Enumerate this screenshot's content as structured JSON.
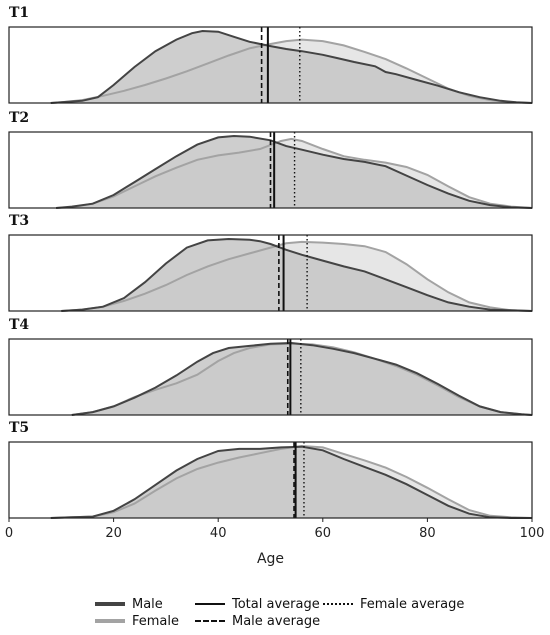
{
  "chart_data": {
    "type": "area",
    "xlabel": "Age",
    "xlim": [
      0,
      100
    ],
    "xticks": [
      0,
      20,
      40,
      60,
      80,
      100
    ],
    "grid": false,
    "colors": {
      "male": "#444444",
      "female": "#a3a3a3",
      "male_fill": "#c6c6c6",
      "female_fill": "#e6e6e6",
      "line": "#111111"
    },
    "legend": {
      "male": "Male",
      "female": "Female",
      "total_average": "Total average",
      "male_average": "Male average",
      "female_average": "Female average"
    },
    "panels": [
      {
        "title": "T1",
        "averages": {
          "total": 49.5,
          "male": 48.3,
          "female": 55.6
        },
        "male": {
          "x": [
            8,
            10,
            14,
            17,
            20,
            24,
            28,
            32,
            35,
            37,
            40,
            43,
            46,
            50,
            53,
            56,
            60,
            63,
            66,
            70,
            72,
            74,
            78,
            82,
            86,
            90,
            94,
            97,
            100
          ],
          "y": [
            0,
            0.01,
            0.03,
            0.08,
            0.25,
            0.5,
            0.72,
            0.88,
            0.97,
            1.0,
            0.99,
            0.92,
            0.85,
            0.79,
            0.75,
            0.72,
            0.67,
            0.62,
            0.57,
            0.51,
            0.43,
            0.4,
            0.32,
            0.24,
            0.15,
            0.08,
            0.03,
            0.01,
            0
          ]
        },
        "female": {
          "x": [
            8,
            10,
            14,
            18,
            22,
            26,
            30,
            34,
            38,
            42,
            46,
            50,
            53,
            56,
            60,
            64,
            68,
            72,
            76,
            80,
            84,
            88,
            92,
            96,
            100
          ],
          "y": [
            0,
            0.01,
            0.04,
            0.1,
            0.17,
            0.25,
            0.34,
            0.44,
            0.55,
            0.66,
            0.76,
            0.82,
            0.86,
            0.88,
            0.86,
            0.8,
            0.71,
            0.61,
            0.48,
            0.34,
            0.2,
            0.1,
            0.04,
            0.01,
            0
          ]
        }
      },
      {
        "title": "T2",
        "averages": {
          "total": 50.7,
          "male": 50.0,
          "female": 54.6
        },
        "male": {
          "x": [
            9,
            12,
            16,
            20,
            24,
            28,
            32,
            36,
            40,
            43,
            46,
            50,
            53,
            56,
            60,
            64,
            68,
            72,
            76,
            80,
            84,
            88,
            92,
            96,
            100
          ],
          "y": [
            0,
            0.02,
            0.06,
            0.18,
            0.36,
            0.54,
            0.72,
            0.88,
            0.98,
            1.0,
            0.99,
            0.94,
            0.86,
            0.81,
            0.74,
            0.68,
            0.64,
            0.58,
            0.45,
            0.32,
            0.2,
            0.1,
            0.04,
            0.01,
            0
          ]
        },
        "female": {
          "x": [
            9,
            12,
            16,
            20,
            24,
            28,
            32,
            36,
            40,
            44,
            48,
            52,
            54,
            56,
            60,
            64,
            68,
            72,
            76,
            80,
            84,
            88,
            92,
            96,
            100
          ],
          "y": [
            0,
            0.01,
            0.06,
            0.16,
            0.3,
            0.44,
            0.56,
            0.67,
            0.73,
            0.77,
            0.82,
            0.93,
            0.96,
            0.93,
            0.82,
            0.72,
            0.67,
            0.63,
            0.57,
            0.46,
            0.3,
            0.15,
            0.06,
            0.02,
            0
          ]
        }
      },
      {
        "title": "T3",
        "averages": {
          "total": 52.5,
          "male": 51.6,
          "female": 57.0
        },
        "male": {
          "x": [
            10,
            14,
            18,
            22,
            26,
            30,
            34,
            38,
            42,
            46,
            48,
            50,
            53,
            56,
            60,
            64,
            68,
            72,
            76,
            80,
            84,
            88,
            92,
            96,
            100
          ],
          "y": [
            0,
            0.02,
            0.06,
            0.18,
            0.4,
            0.66,
            0.88,
            0.98,
            1.0,
            0.99,
            0.97,
            0.93,
            0.85,
            0.78,
            0.7,
            0.62,
            0.55,
            0.44,
            0.33,
            0.22,
            0.12,
            0.06,
            0.02,
            0.01,
            0
          ]
        },
        "female": {
          "x": [
            10,
            14,
            18,
            22,
            26,
            30,
            34,
            38,
            42,
            46,
            50,
            53,
            56,
            60,
            64,
            68,
            72,
            76,
            80,
            84,
            88,
            92,
            96,
            100
          ],
          "y": [
            0,
            0.02,
            0.06,
            0.14,
            0.24,
            0.36,
            0.5,
            0.62,
            0.72,
            0.8,
            0.88,
            0.94,
            0.96,
            0.95,
            0.93,
            0.9,
            0.82,
            0.65,
            0.44,
            0.26,
            0.12,
            0.05,
            0.01,
            0
          ]
        }
      },
      {
        "title": "T4",
        "averages": {
          "total": 53.8,
          "male": 53.3,
          "female": 55.8
        },
        "male": {
          "x": [
            12,
            16,
            20,
            24,
            28,
            32,
            36,
            39,
            42,
            46,
            50,
            54,
            58,
            62,
            66,
            70,
            74,
            78,
            82,
            86,
            90,
            94,
            98,
            100
          ],
          "y": [
            0,
            0.04,
            0.12,
            0.24,
            0.38,
            0.55,
            0.74,
            0.86,
            0.93,
            0.96,
            0.99,
            1.0,
            0.97,
            0.92,
            0.86,
            0.78,
            0.7,
            0.58,
            0.43,
            0.27,
            0.12,
            0.04,
            0.01,
            0
          ]
        },
        "female": {
          "x": [
            12,
            16,
            20,
            24,
            28,
            32,
            36,
            40,
            43,
            46,
            50,
            54,
            58,
            62,
            66,
            70,
            74,
            78,
            82,
            86,
            90,
            94,
            98,
            100
          ],
          "y": [
            0,
            0.04,
            0.12,
            0.25,
            0.35,
            0.44,
            0.56,
            0.75,
            0.86,
            0.93,
            0.98,
            0.99,
            0.98,
            0.94,
            0.87,
            0.78,
            0.68,
            0.56,
            0.41,
            0.25,
            0.12,
            0.04,
            0.01,
            0
          ]
        }
      },
      {
        "title": "T5",
        "averages": {
          "total": 54.8,
          "male": 54.5,
          "female": 56.4
        },
        "male": {
          "x": [
            8,
            12,
            16,
            20,
            24,
            28,
            32,
            36,
            40,
            44,
            48,
            52,
            56,
            60,
            64,
            68,
            72,
            76,
            80,
            84,
            88,
            92,
            96,
            100
          ],
          "y": [
            0,
            0.01,
            0.02,
            0.1,
            0.26,
            0.46,
            0.66,
            0.82,
            0.93,
            0.96,
            0.96,
            0.98,
            0.99,
            0.94,
            0.82,
            0.71,
            0.6,
            0.47,
            0.32,
            0.17,
            0.06,
            0.01,
            0,
            0
          ]
        },
        "female": {
          "x": [
            8,
            12,
            16,
            20,
            24,
            28,
            32,
            36,
            40,
            44,
            48,
            52,
            56,
            60,
            64,
            68,
            72,
            76,
            80,
            84,
            88,
            92,
            96,
            100
          ],
          "y": [
            0,
            0.01,
            0.02,
            0.08,
            0.2,
            0.38,
            0.55,
            0.68,
            0.77,
            0.84,
            0.9,
            0.96,
            1.0,
            0.98,
            0.89,
            0.8,
            0.7,
            0.57,
            0.42,
            0.26,
            0.11,
            0.03,
            0.01,
            0
          ]
        }
      }
    ]
  }
}
